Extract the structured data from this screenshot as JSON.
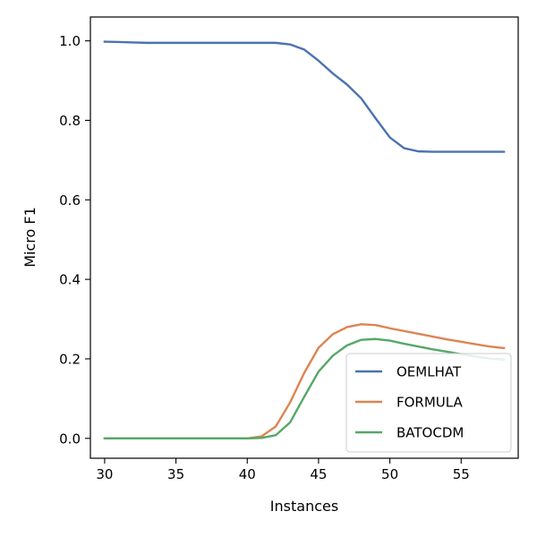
{
  "chart_data": {
    "type": "line",
    "title": "",
    "xlabel": "Instances",
    "ylabel": "Micro F1",
    "xlim": [
      29.0,
      59.0
    ],
    "ylim": [
      -0.05,
      1.06
    ],
    "xticks": [
      30,
      35,
      40,
      45,
      50,
      55
    ],
    "yticks": [
      0.0,
      0.2,
      0.4,
      0.6,
      0.8,
      1.0
    ],
    "xtick_labels": [
      "30",
      "35",
      "40",
      "45",
      "50",
      "55"
    ],
    "ytick_labels": [
      "0.0",
      "0.2",
      "0.4",
      "0.6",
      "0.8",
      "1.0"
    ],
    "grid": false,
    "legend_position": "lower right",
    "x": [
      30,
      31,
      32,
      33,
      34,
      35,
      36,
      37,
      38,
      39,
      40,
      41,
      42,
      43,
      44,
      45,
      46,
      47,
      48,
      49,
      50,
      51,
      52,
      53,
      54,
      55,
      56,
      57,
      58
    ],
    "series": [
      {
        "name": "OEMLHAT",
        "color": "#4c72b0",
        "values": [
          0.998,
          0.997,
          0.996,
          0.995,
          0.995,
          0.995,
          0.995,
          0.995,
          0.995,
          0.995,
          0.995,
          0.995,
          0.995,
          0.991,
          0.978,
          0.95,
          0.918,
          0.89,
          0.855,
          0.805,
          0.757,
          0.73,
          0.722,
          0.721,
          0.721,
          0.721,
          0.721,
          0.721,
          0.721
        ]
      },
      {
        "name": "FORMULA",
        "color": "#dd8452",
        "values": [
          0.0,
          0.0,
          0.0,
          0.0,
          0.0,
          0.0,
          0.0,
          0.0,
          0.0,
          0.0,
          0.0,
          0.005,
          0.03,
          0.09,
          0.165,
          0.228,
          0.262,
          0.28,
          0.287,
          0.285,
          0.277,
          0.27,
          0.263,
          0.256,
          0.249,
          0.243,
          0.237,
          0.231,
          0.227
        ]
      },
      {
        "name": "BATOCDM",
        "color": "#55a868",
        "values": [
          0.0,
          0.0,
          0.0,
          0.0,
          0.0,
          0.0,
          0.0,
          0.0,
          0.0,
          0.0,
          0.0,
          0.001,
          0.008,
          0.04,
          0.105,
          0.168,
          0.208,
          0.234,
          0.248,
          0.25,
          0.246,
          0.238,
          0.231,
          0.224,
          0.218,
          0.212,
          0.206,
          0.201,
          0.198
        ]
      }
    ]
  }
}
